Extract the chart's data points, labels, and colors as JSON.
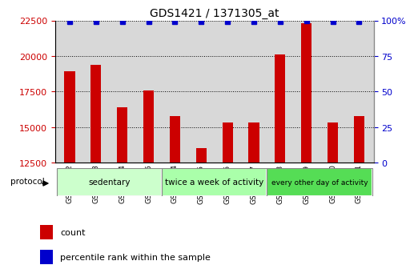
{
  "title": "GDS1421 / 1371305_at",
  "samples": [
    "GSM52122",
    "GSM52123",
    "GSM52124",
    "GSM52125",
    "GSM52114",
    "GSM52115",
    "GSM52116",
    "GSM52117",
    "GSM52118",
    "GSM52119",
    "GSM52120",
    "GSM52121"
  ],
  "counts": [
    18900,
    19400,
    16400,
    17600,
    15800,
    13500,
    15300,
    15300,
    20100,
    22300,
    15300,
    15800
  ],
  "percentiles": [
    99,
    99,
    99,
    99,
    99,
    99,
    99,
    99,
    99,
    100,
    99,
    99
  ],
  "ylim_left": [
    12500,
    22500
  ],
  "ylim_right": [
    0,
    100
  ],
  "yticks_left": [
    12500,
    15000,
    17500,
    20000,
    22500
  ],
  "yticks_right": [
    0,
    25,
    50,
    75,
    100
  ],
  "groups": [
    {
      "label": "sedentary",
      "indices": [
        0,
        1,
        2,
        3
      ],
      "color": "#ccffcc"
    },
    {
      "label": "twice a week of activity",
      "indices": [
        4,
        5,
        6,
        7
      ],
      "color": "#aaffaa"
    },
    {
      "label": "every other day of activity",
      "indices": [
        8,
        9,
        10,
        11
      ],
      "color": "#55dd55"
    }
  ],
  "bar_color": "#cc0000",
  "dot_color": "#0000cc",
  "bar_width": 0.4,
  "plot_bg_color": "#d8d8d8",
  "left_axis_color": "#cc0000",
  "right_axis_color": "#0000cc",
  "legend_items": [
    {
      "label": "count",
      "color": "#cc0000"
    },
    {
      "label": "percentile rank within the sample",
      "color": "#0000cc"
    }
  ],
  "protocol_label": "protocol",
  "figsize": [
    5.13,
    3.45
  ],
  "dpi": 100
}
